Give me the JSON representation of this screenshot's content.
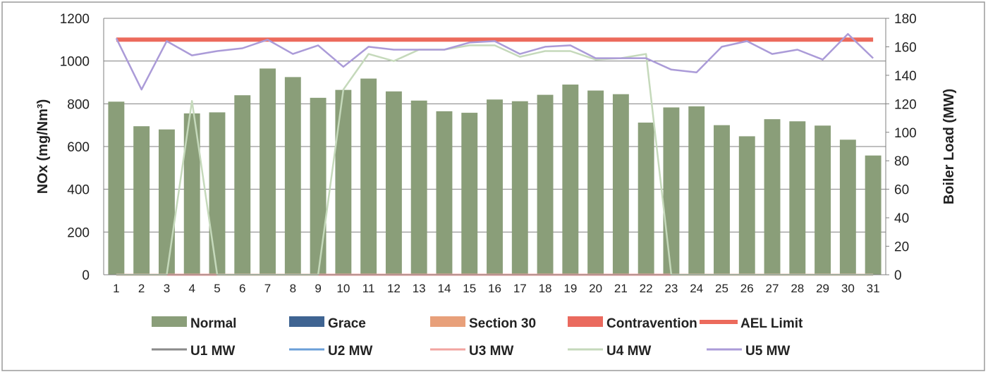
{
  "chart_data": {
    "type": "bar",
    "title": "",
    "categories": [
      "1",
      "2",
      "3",
      "4",
      "5",
      "6",
      "7",
      "8",
      "9",
      "10",
      "11",
      "12",
      "13",
      "14",
      "15",
      "16",
      "17",
      "18",
      "19",
      "20",
      "21",
      "22",
      "23",
      "24",
      "25",
      "26",
      "27",
      "28",
      "29",
      "30",
      "31"
    ],
    "y_left": {
      "label": "NOx (mg/Nm³)",
      "range": [
        0,
        1200
      ],
      "ticks": [
        0,
        200,
        400,
        600,
        800,
        1000,
        1200
      ]
    },
    "y_right": {
      "label": "Boiler Load (MW)",
      "range": [
        0,
        180
      ],
      "ticks": [
        0,
        20,
        40,
        60,
        80,
        100,
        120,
        140,
        160,
        180
      ]
    },
    "grid": true,
    "legend_position": "bottom",
    "bar_series": [
      {
        "name": "Normal",
        "color": "#8a9e79",
        "axis": "left",
        "values": [
          810,
          695,
          680,
          755,
          760,
          840,
          965,
          925,
          828,
          865,
          918,
          858,
          815,
          765,
          758,
          820,
          812,
          842,
          890,
          862,
          845,
          712,
          783,
          788,
          700,
          648,
          728,
          718,
          698,
          632,
          558
        ]
      },
      {
        "name": "Grace",
        "color": "#3f6492",
        "axis": "left",
        "values": []
      },
      {
        "name": "Section 30",
        "color": "#e8a07a",
        "axis": "left",
        "values": []
      },
      {
        "name": "Contravention",
        "color": "#ea6a5e",
        "axis": "left",
        "values": []
      }
    ],
    "line_series": [
      {
        "name": "AEL Limit",
        "color": "#ec6a5c",
        "axis": "left",
        "values": [
          1100,
          1100,
          1100,
          1100,
          1100,
          1100,
          1100,
          1100,
          1100,
          1100,
          1100,
          1100,
          1100,
          1100,
          1100,
          1100,
          1100,
          1100,
          1100,
          1100,
          1100,
          1100,
          1100,
          1100,
          1100,
          1100,
          1100,
          1100,
          1100,
          1100,
          1100
        ]
      },
      {
        "name": "U1 MW",
        "color": "#8a8a8a",
        "axis": "right",
        "values": []
      },
      {
        "name": "U2 MW",
        "color": "#6b9fd8",
        "axis": "right",
        "values": []
      },
      {
        "name": "U3 MW",
        "color": "#f2a4a0",
        "axis": "right",
        "values": [
          0,
          0,
          0,
          0,
          0,
          0,
          0,
          0,
          0,
          0,
          0,
          0,
          0,
          0,
          0,
          0,
          0,
          0,
          0,
          0,
          0,
          0,
          0,
          0,
          0,
          0,
          0,
          0,
          0,
          0,
          0
        ]
      },
      {
        "name": "U4 MW",
        "color": "#c5d9bb",
        "axis": "right",
        "values": [
          0,
          0,
          0,
          122,
          0,
          0,
          0,
          0,
          0,
          130,
          155,
          150,
          158,
          158,
          161,
          161,
          153,
          157,
          157,
          151,
          152,
          155,
          0,
          0,
          0,
          0,
          0,
          0,
          0,
          0,
          0
        ]
      },
      {
        "name": "U5 MW",
        "color": "#ab9bd8",
        "axis": "right",
        "values": [
          166,
          130,
          164,
          154,
          157,
          159,
          165,
          155,
          161,
          146,
          160,
          158,
          158,
          158,
          163,
          164,
          155,
          160,
          161,
          152,
          152,
          152,
          144,
          142,
          160,
          164,
          155,
          158,
          151,
          169,
          152
        ]
      }
    ],
    "legend_rows": [
      [
        "Normal",
        "Grace",
        "Section 30",
        "Contravention",
        "AEL Limit"
      ],
      [
        "U1 MW",
        "U2 MW",
        "U3 MW",
        "U4 MW",
        "U5 MW"
      ]
    ]
  }
}
